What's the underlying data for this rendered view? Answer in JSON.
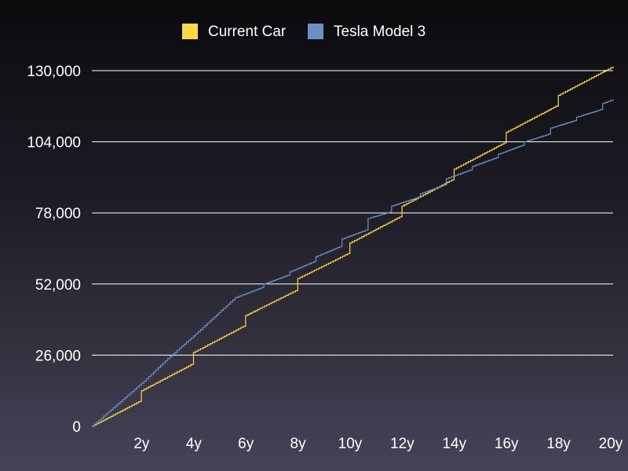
{
  "chart_data": {
    "type": "line",
    "title": "",
    "xlabel": "",
    "ylabel": "",
    "xlim": [
      0,
      20
    ],
    "ylim": [
      0,
      130000
    ],
    "x_ticks": [
      2,
      4,
      6,
      8,
      10,
      12,
      14,
      16,
      18,
      20
    ],
    "x_tick_labels": [
      "2y",
      "4y",
      "6y",
      "8y",
      "10y",
      "12y",
      "14y",
      "16y",
      "18y",
      "20y"
    ],
    "y_ticks": [
      0,
      26000,
      52000,
      78000,
      104000,
      130000
    ],
    "y_tick_labels": [
      "0",
      "26,000",
      "52,000",
      "78,000",
      "104,000",
      "130,000"
    ],
    "grid": {
      "horizontal": true,
      "vertical": false
    },
    "legend": {
      "placement": "top-center"
    },
    "series": [
      {
        "name": "Current Car",
        "color": "#ffd84a",
        "step": true,
        "points": [
          [
            0,
            0
          ],
          [
            1.9,
            9500
          ],
          [
            1.9,
            13000
          ],
          [
            3.9,
            23000
          ],
          [
            3.9,
            27000
          ],
          [
            5.9,
            37000
          ],
          [
            5.9,
            40500
          ],
          [
            7.9,
            50000
          ],
          [
            7.9,
            54000
          ],
          [
            9.9,
            63500
          ],
          [
            9.9,
            67000
          ],
          [
            11.9,
            77000
          ],
          [
            11.9,
            80500
          ],
          [
            13.9,
            90500
          ],
          [
            13.9,
            94000
          ],
          [
            15.9,
            104000
          ],
          [
            15.9,
            107500
          ],
          [
            17.9,
            117500
          ],
          [
            17.9,
            121000
          ],
          [
            20,
            131500
          ]
        ]
      },
      {
        "name": "Tesla Model 3",
        "color": "#6f8fc4",
        "step": true,
        "points": [
          [
            0,
            0
          ],
          [
            2,
            16500
          ],
          [
            3,
            25500
          ],
          [
            3.9,
            33000
          ],
          [
            5.5,
            47000
          ],
          [
            6.6,
            51000
          ],
          [
            6.6,
            52000
          ],
          [
            7.6,
            55500
          ],
          [
            7.6,
            56500
          ],
          [
            8.6,
            60500
          ],
          [
            8.6,
            62000
          ],
          [
            9.6,
            66000
          ],
          [
            9.6,
            68500
          ],
          [
            10.6,
            72000
          ],
          [
            10.6,
            76000
          ],
          [
            11.5,
            78500
          ],
          [
            11.5,
            80500
          ],
          [
            12.6,
            84000
          ],
          [
            12.6,
            85000
          ],
          [
            13.6,
            88500
          ],
          [
            13.6,
            90500
          ],
          [
            14.6,
            94000
          ],
          [
            14.6,
            95000
          ],
          [
            15.6,
            98500
          ],
          [
            15.6,
            99500
          ],
          [
            16.6,
            103000
          ],
          [
            16.6,
            104000
          ],
          [
            17.6,
            107000
          ],
          [
            17.6,
            109000
          ],
          [
            18.6,
            112000
          ],
          [
            18.6,
            113000
          ],
          [
            19.6,
            116000
          ],
          [
            19.6,
            118000
          ],
          [
            20,
            119500
          ]
        ]
      }
    ]
  }
}
